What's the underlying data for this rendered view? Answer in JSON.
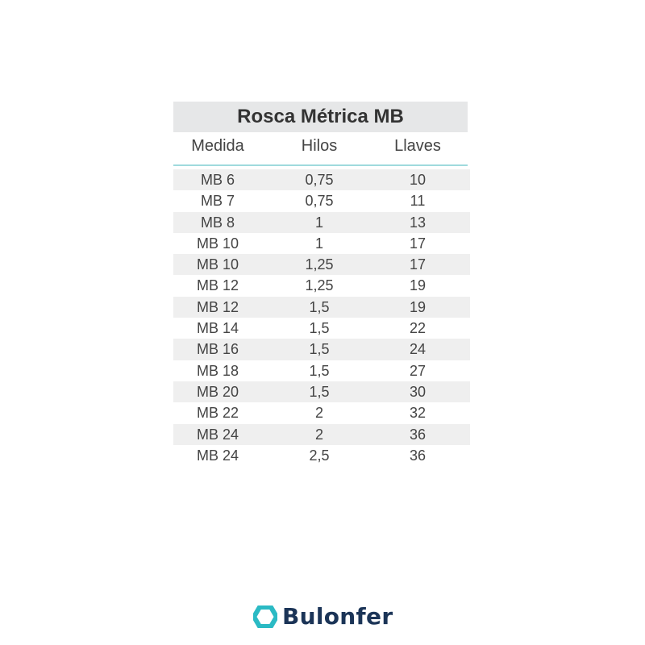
{
  "title": "Rosca Métrica MB",
  "headers": [
    "Medida",
    "Hilos",
    "Llaves"
  ],
  "rows": [
    [
      "MB 6",
      "0,75",
      "10"
    ],
    [
      "MB 7",
      "0,75",
      "11"
    ],
    [
      "MB 8",
      "1",
      "13"
    ],
    [
      "MB 10",
      "1",
      "17"
    ],
    [
      "MB 10",
      "1,25",
      "17"
    ],
    [
      "MB 12",
      "1,25",
      "19"
    ],
    [
      "MB 12",
      "1,5",
      "19"
    ],
    [
      "MB 14",
      "1,5",
      "22"
    ],
    [
      "MB 16",
      "1,5",
      "24"
    ],
    [
      "MB 18",
      "1,5",
      "27"
    ],
    [
      "MB 20",
      "1,5",
      "30"
    ],
    [
      "MB 22",
      "2",
      "32"
    ],
    [
      "MB 24",
      "2",
      "36"
    ],
    [
      "MB 24",
      "2,5",
      "36"
    ]
  ],
  "logo": {
    "name": "Bulonfer",
    "icon": "hexagon-icon",
    "colors": {
      "icon": "#2bbac4",
      "text": "#1b3457"
    }
  }
}
